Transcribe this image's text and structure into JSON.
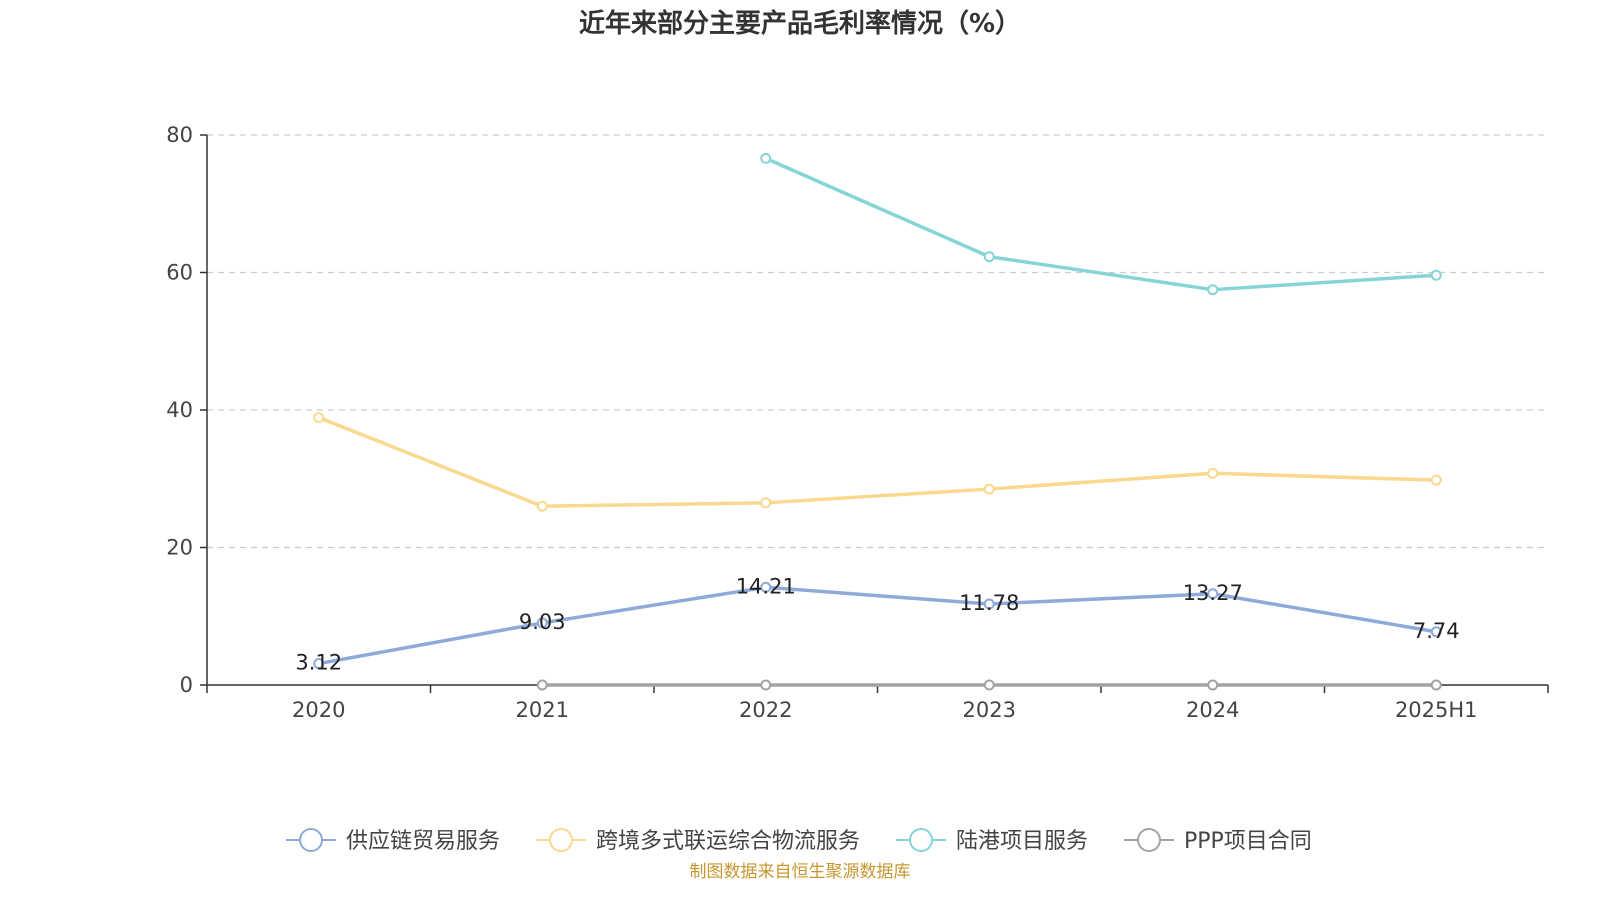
{
  "chart_data": {
    "type": "line",
    "title": "近年来部分主要产品毛利率情况（%）",
    "categories": [
      "2020",
      "2021",
      "2022",
      "2023",
      "2024",
      "2025H1"
    ],
    "ylim": [
      0,
      80
    ],
    "yticks": [
      0,
      20,
      40,
      60,
      80
    ],
    "grid": true,
    "legend_position": "bottom",
    "series": [
      {
        "name": "供应链贸易服务",
        "color": "#8eaad8",
        "show_labels": true,
        "values": [
          3.12,
          9.03,
          14.21,
          11.78,
          13.27,
          7.74
        ],
        "labels": [
          "3.12",
          "9.03",
          "14.21",
          "11.78",
          "13.27",
          "7.74"
        ]
      },
      {
        "name": "跨境多式联运综合物流服务",
        "color": "#fbd88f",
        "show_labels": false,
        "values": [
          38.9,
          26.0,
          26.5,
          28.5,
          30.8,
          29.8
        ]
      },
      {
        "name": "陆港项目服务",
        "color": "#86d4d6",
        "show_labels": false,
        "values": [
          null,
          null,
          76.6,
          62.3,
          57.5,
          59.6
        ]
      },
      {
        "name": "PPP项目合同",
        "color": "#a3a3a3",
        "show_labels": false,
        "values": [
          null,
          0,
          0,
          0,
          0,
          0
        ]
      }
    ]
  },
  "source": "制图数据来自恒生聚源数据库"
}
